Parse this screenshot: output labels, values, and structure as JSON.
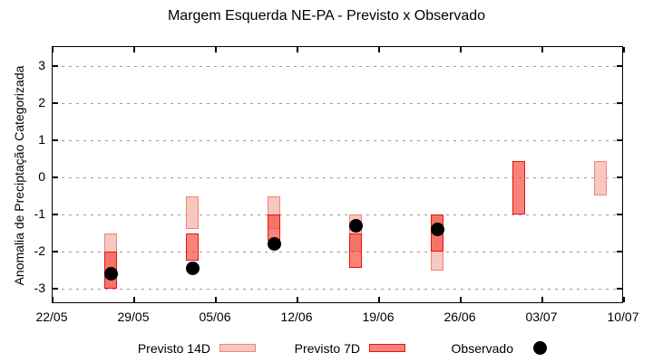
{
  "title": "Margem Esquerda NE-PA - Previsto x Observado",
  "colors": {
    "previsto_14d_fill": "#f7c8c0",
    "previsto_14d_border": "#ef8478",
    "previsto_7d_fill": "rgba(246,78,66,0.7)",
    "previsto_7d_fill_solid": "#f9837b",
    "previsto_7d_border": "#e81310",
    "observado": "#000000",
    "grid": "#9a9a9a",
    "frame": "#000000"
  },
  "chart_data": {
    "type": "bar",
    "subtype": "floating-range-boxes-with-observed-points",
    "title": "Margem Esquerda NE-PA - Previsto x Observado",
    "xlabel": "",
    "ylabel": "Anomalia de Preciptação Categorizada",
    "ylim": [
      -3.4,
      3.5
    ],
    "yticks": [
      3,
      2,
      1,
      0,
      -1,
      -2,
      -3
    ],
    "ytick_labels": [
      "3",
      "2",
      "1",
      "0",
      "-1",
      "-2",
      "-3"
    ],
    "xtick_labels": [
      "22/05",
      "29/05",
      "05/06",
      "12/06",
      "19/06",
      "26/06",
      "03/07",
      "10/07"
    ],
    "x_days_total": 49,
    "x_tick_interval_days": 7,
    "grid": "horizontal dashed",
    "legend_position": "bottom outside",
    "series": [
      {
        "name": "Previsto 14D",
        "type": "box",
        "points": [
          {
            "date": "27/05",
            "day": 5,
            "high": -1.5,
            "low": -3.0
          },
          {
            "date": "03/06",
            "day": 12,
            "high": -0.5,
            "low": -1.4
          },
          {
            "date": "10/06",
            "day": 19,
            "high": -0.5,
            "low": -1.4
          },
          {
            "date": "17/06",
            "day": 26,
            "high": -1.0,
            "low": -2.0
          },
          {
            "date": "24/06",
            "day": 33,
            "high": -1.0,
            "low": -2.5
          },
          {
            "date": "08/07",
            "day": 47,
            "high": 0.45,
            "low": -0.5
          }
        ]
      },
      {
        "name": "Previsto 7D",
        "type": "box",
        "points": [
          {
            "date": "27/05",
            "day": 5,
            "high": -2.0,
            "low": -3.0
          },
          {
            "date": "03/06",
            "day": 12,
            "high": -1.5,
            "low": -2.25
          },
          {
            "date": "10/06",
            "day": 19,
            "high": -1.0,
            "low": -1.7
          },
          {
            "date": "17/06",
            "day": 26,
            "high": -1.5,
            "low": -2.45
          },
          {
            "date": "24/06",
            "day": 33,
            "high": -1.0,
            "low": -2.0
          },
          {
            "date": "01/07",
            "day": 40,
            "high": 0.45,
            "low": -1.0
          }
        ]
      },
      {
        "name": "Observado",
        "type": "point",
        "points": [
          {
            "date": "27/05",
            "day": 5,
            "value": -2.6
          },
          {
            "date": "03/06",
            "day": 12,
            "value": -2.45
          },
          {
            "date": "10/06",
            "day": 19,
            "value": -1.8
          },
          {
            "date": "17/06",
            "day": 26,
            "value": -1.3
          },
          {
            "date": "24/06",
            "day": 33,
            "value": -1.4
          }
        ]
      }
    ],
    "legend": [
      {
        "label": "Previsto 14D"
      },
      {
        "label": "Previsto 7D"
      },
      {
        "label": "Observado"
      }
    ]
  }
}
